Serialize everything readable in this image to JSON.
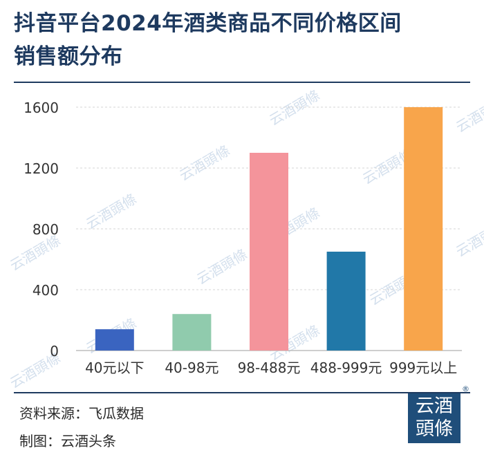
{
  "title": {
    "line1": "抖音平台2024年酒类商品不同价格区间",
    "line2": "销售额分布"
  },
  "chart_data": {
    "type": "bar",
    "categories": [
      "40元以下",
      "40-98元",
      "98-488元",
      "488-999元",
      "999元以上"
    ],
    "values": [
      140,
      240,
      1300,
      650,
      1600
    ],
    "colors": [
      "#3a64c0",
      "#90cbad",
      "#f4949b",
      "#2178a8",
      "#f8a54b"
    ],
    "yticks": [
      "0",
      "400",
      "800",
      "1200",
      "1600"
    ],
    "ylim": [
      0,
      1600
    ],
    "grid": true,
    "xlabel": "",
    "ylabel": ""
  },
  "watermark": {
    "text": "云酒頭條"
  },
  "footer": {
    "source": "资料来源：飞瓜数据",
    "author": "制图：云酒头条"
  },
  "logo": {
    "line1": "云酒",
    "line2": "頭條",
    "reg_mark": "®"
  }
}
